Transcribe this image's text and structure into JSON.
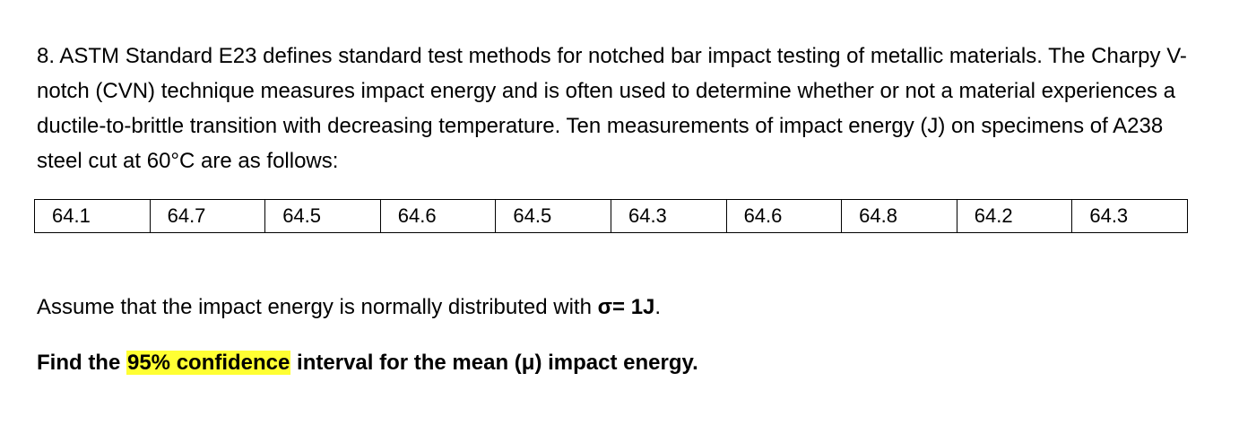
{
  "problem": {
    "text": "8. ASTM Standard E23 defines standard test methods for notched bar impact testing of metallic materials.  The Charpy V-notch (CVN) technique measures impact energy and is often used to determine whether or not a material experiences a ductile-to-brittle transition with decreasing temperature.  Ten measurements of impact energy (J) on specimens of A238 steel cut at 60°C are as follows:"
  },
  "measurements": [
    "64.1",
    "64.7",
    "64.5",
    "64.6",
    "64.5",
    "64.3",
    "64.6",
    "64.8",
    "64.2",
    "64.3"
  ],
  "assumption": {
    "prefix": "Assume that the impact energy is normally distributed with ",
    "sigma": "σ= 1J",
    "suffix": "."
  },
  "task": {
    "prefix": "Find the ",
    "highlight": "95% confidence",
    "suffix": " interval for the mean (μ) impact energy.",
    "highlight_color": "#ffff33"
  }
}
